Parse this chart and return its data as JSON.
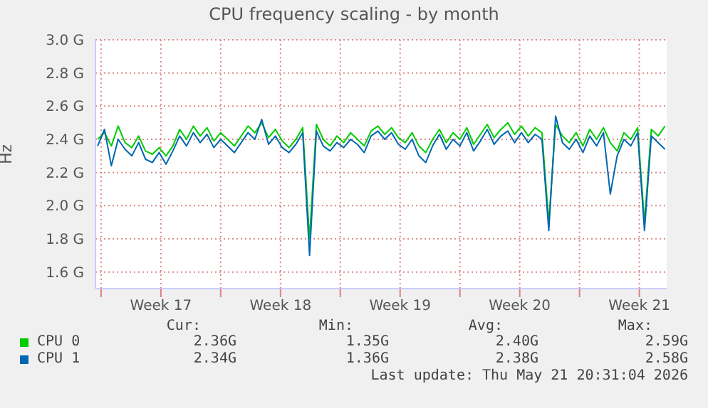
{
  "chart_data": {
    "type": "line",
    "title": "CPU frequency scaling - by month",
    "ylabel": "Hz",
    "x": [
      "2026-04-19T19:12",
      "2026-04-20T04:48",
      "2026-04-20T14:24",
      "2026-04-21T00:00",
      "2026-04-21T09:36",
      "2026-04-21T19:12",
      "2026-04-22T04:48",
      "2026-04-22T14:24",
      "2026-04-23T00:00",
      "2026-04-23T09:36",
      "2026-04-23T19:12",
      "2026-04-24T04:48",
      "2026-04-24T14:24",
      "2026-04-25T00:00",
      "2026-04-25T09:36",
      "2026-04-25T19:12",
      "2026-04-26T04:48",
      "2026-04-26T14:24",
      "2026-04-27T00:00",
      "2026-04-27T09:36",
      "2026-04-27T19:12",
      "2026-04-28T04:48",
      "2026-04-28T14:24",
      "2026-04-29T00:00",
      "2026-04-29T09:36",
      "2026-04-29T19:12",
      "2026-04-30T04:48",
      "2026-04-30T14:24",
      "2026-05-01T00:00",
      "2026-05-01T09:36",
      "2026-05-01T19:12",
      "2026-05-02T04:48",
      "2026-05-02T14:24",
      "2026-05-03T00:00",
      "2026-05-03T09:36",
      "2026-05-03T19:12",
      "2026-05-04T04:48",
      "2026-05-04T14:24",
      "2026-05-05T00:00",
      "2026-05-05T09:36",
      "2026-05-05T19:12",
      "2026-05-06T04:48",
      "2026-05-06T14:24",
      "2026-05-07T00:00",
      "2026-05-07T09:36",
      "2026-05-07T19:12",
      "2026-05-08T04:48",
      "2026-05-08T14:24",
      "2026-05-09T00:00",
      "2026-05-09T09:36",
      "2026-05-09T19:12",
      "2026-05-10T04:48",
      "2026-05-10T14:24",
      "2026-05-11T00:00",
      "2026-05-11T09:36",
      "2026-05-11T19:12",
      "2026-05-12T04:48",
      "2026-05-12T14:24",
      "2026-05-13T00:00",
      "2026-05-13T09:36",
      "2026-05-13T19:12",
      "2026-05-14T04:48",
      "2026-05-14T14:24",
      "2026-05-15T00:00",
      "2026-05-15T09:36",
      "2026-05-15T19:12",
      "2026-05-16T04:48",
      "2026-05-16T14:24",
      "2026-05-17T00:00",
      "2026-05-17T09:36",
      "2026-05-17T19:12",
      "2026-05-18T04:48",
      "2026-05-18T14:24",
      "2026-05-19T00:00",
      "2026-05-19T09:36",
      "2026-05-19T19:12",
      "2026-05-20T04:48",
      "2026-05-20T14:24",
      "2026-05-21T00:00",
      "2026-05-21T09:36",
      "2026-05-21T19:12",
      "2026-05-22T04:48",
      "2026-05-22T14:24",
      "2026-05-23T00:00"
    ],
    "series": [
      {
        "name": "CPU 0",
        "color": "#00cc00",
        "values": [
          2.4,
          2.44,
          2.36,
          2.48,
          2.38,
          2.35,
          2.42,
          2.33,
          2.31,
          2.35,
          2.3,
          2.36,
          2.46,
          2.4,
          2.48,
          2.42,
          2.47,
          2.39,
          2.44,
          2.4,
          2.36,
          2.42,
          2.48,
          2.44,
          2.5,
          2.41,
          2.46,
          2.39,
          2.35,
          2.4,
          2.47,
          1.8,
          2.49,
          2.4,
          2.36,
          2.42,
          2.38,
          2.44,
          2.4,
          2.36,
          2.45,
          2.48,
          2.43,
          2.47,
          2.41,
          2.38,
          2.44,
          2.36,
          2.32,
          2.4,
          2.46,
          2.38,
          2.44,
          2.4,
          2.47,
          2.37,
          2.43,
          2.49,
          2.41,
          2.46,
          2.5,
          2.43,
          2.48,
          2.42,
          2.47,
          2.44,
          1.9,
          2.49,
          2.42,
          2.38,
          2.44,
          2.36,
          2.46,
          2.4,
          2.47,
          2.38,
          2.33,
          2.44,
          2.4,
          2.47,
          1.9,
          2.46,
          2.42,
          2.48
        ]
      },
      {
        "name": "CPU 1",
        "color": "#0066b3",
        "values": [
          2.36,
          2.46,
          2.24,
          2.4,
          2.34,
          2.3,
          2.38,
          2.28,
          2.26,
          2.32,
          2.25,
          2.33,
          2.42,
          2.36,
          2.44,
          2.38,
          2.43,
          2.35,
          2.4,
          2.36,
          2.32,
          2.38,
          2.44,
          2.4,
          2.52,
          2.37,
          2.42,
          2.35,
          2.32,
          2.37,
          2.44,
          1.7,
          2.45,
          2.36,
          2.33,
          2.38,
          2.35,
          2.4,
          2.37,
          2.32,
          2.42,
          2.45,
          2.4,
          2.44,
          2.37,
          2.34,
          2.4,
          2.3,
          2.26,
          2.36,
          2.43,
          2.34,
          2.4,
          2.36,
          2.44,
          2.33,
          2.39,
          2.46,
          2.37,
          2.42,
          2.45,
          2.38,
          2.44,
          2.38,
          2.43,
          2.4,
          1.85,
          2.54,
          2.38,
          2.34,
          2.4,
          2.32,
          2.42,
          2.36,
          2.44,
          2.07,
          2.3,
          2.4,
          2.36,
          2.44,
          1.85,
          2.42,
          2.38,
          2.34
        ]
      }
    ],
    "xlim": [
      "2026-04-19T16:05",
      "2026-05-23T02:24"
    ],
    "xticks": [
      {
        "value": "2026-04-20",
        "label": null
      },
      {
        "value": "2026-04-23T12:00",
        "label": "Week 17"
      },
      {
        "value": "2026-04-27",
        "label": null
      },
      {
        "value": "2026-04-30T12:00",
        "label": "Week 18"
      },
      {
        "value": "2026-05-04",
        "label": null
      },
      {
        "value": "2026-05-07T12:00",
        "label": "Week 19"
      },
      {
        "value": "2026-05-11",
        "label": null
      },
      {
        "value": "2026-05-14T12:00",
        "label": "Week 20"
      },
      {
        "value": "2026-05-18",
        "label": null
      },
      {
        "value": "2026-05-21T12:00",
        "label": "Week 21"
      }
    ],
    "ylim": [
      1.5,
      3.0
    ],
    "yticks": [
      {
        "value": 1.6,
        "label": "1.6 G"
      },
      {
        "value": 1.8,
        "label": "1.8 G"
      },
      {
        "value": 2.0,
        "label": "2.0 G"
      },
      {
        "value": 2.2,
        "label": "2.2 G"
      },
      {
        "value": 2.4,
        "label": "2.4 G"
      },
      {
        "value": 2.6,
        "label": "2.6 G"
      },
      {
        "value": 2.8,
        "label": "2.8 G"
      },
      {
        "value": 3.0,
        "label": "3.0 G"
      }
    ],
    "grid": true,
    "legend": "bottom",
    "marker": "none",
    "line_style": "solid",
    "annotations": [
      "Cur:",
      "Min:",
      "Avg:",
      "Max:",
      "2.36G",
      "1.35G",
      "2.40G",
      "2.59G",
      "2.34G",
      "1.36G",
      "2.38G",
      "2.58G",
      "Last update: Thu May 21 20:31:04 2026"
    ]
  }
}
